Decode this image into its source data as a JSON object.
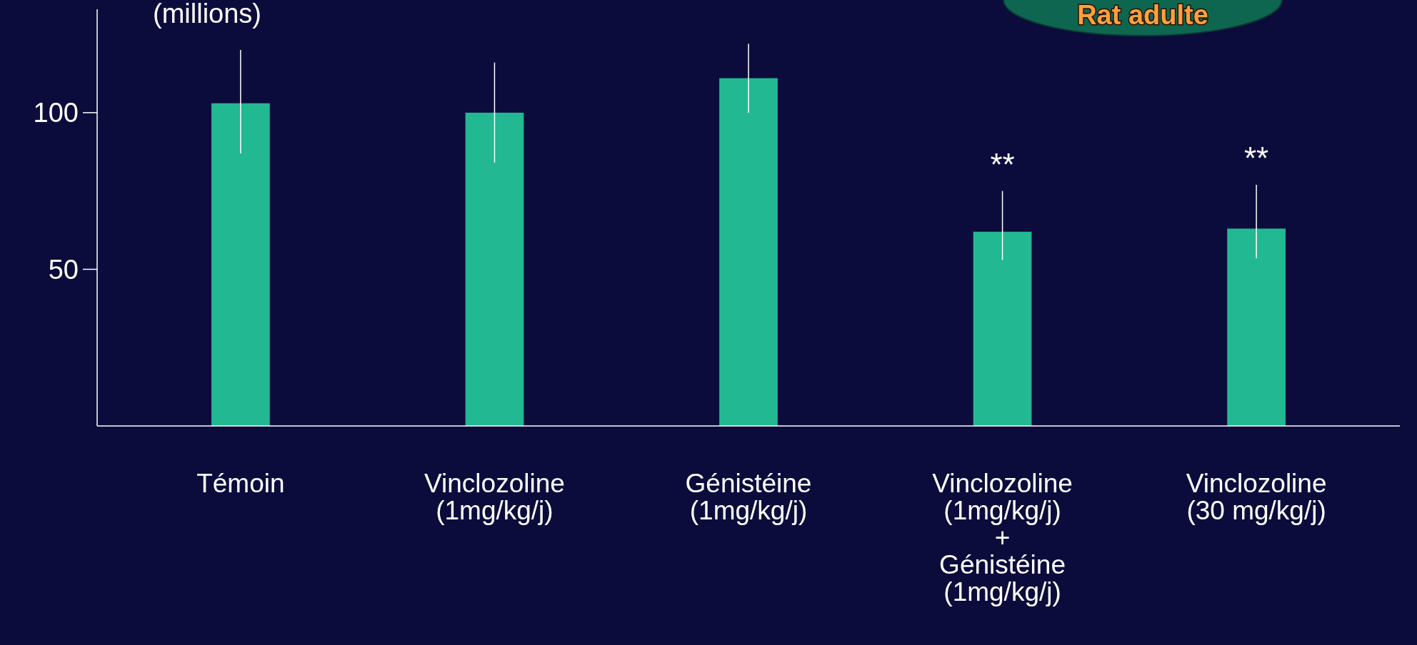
{
  "chart_data": {
    "type": "bar",
    "ylabel": "(millions)",
    "categories": [
      "Témoin",
      "Vinclozoline\n(1mg/kg/j)",
      "Génistéine\n(1mg/kg/j)",
      "Vinclozoline\n(1mg/kg/j)\n+\nGénistéine\n(1mg/kg/j)",
      "Vinclozoline\n(30 mg/kg/j)"
    ],
    "values": [
      103,
      100,
      111,
      62,
      63
    ],
    "errors": [
      [
        87,
        120
      ],
      [
        84,
        116
      ],
      [
        100,
        122
      ],
      [
        53,
        75
      ],
      [
        53.5,
        77
      ]
    ],
    "color": "#22b891",
    "ylim": [
      0,
      133
    ],
    "yticks": [
      50,
      100
    ],
    "grid": false,
    "value_labels": [
      null,
      null,
      null,
      "**",
      "**"
    ],
    "annotations": [
      "Rat adulte"
    ]
  }
}
